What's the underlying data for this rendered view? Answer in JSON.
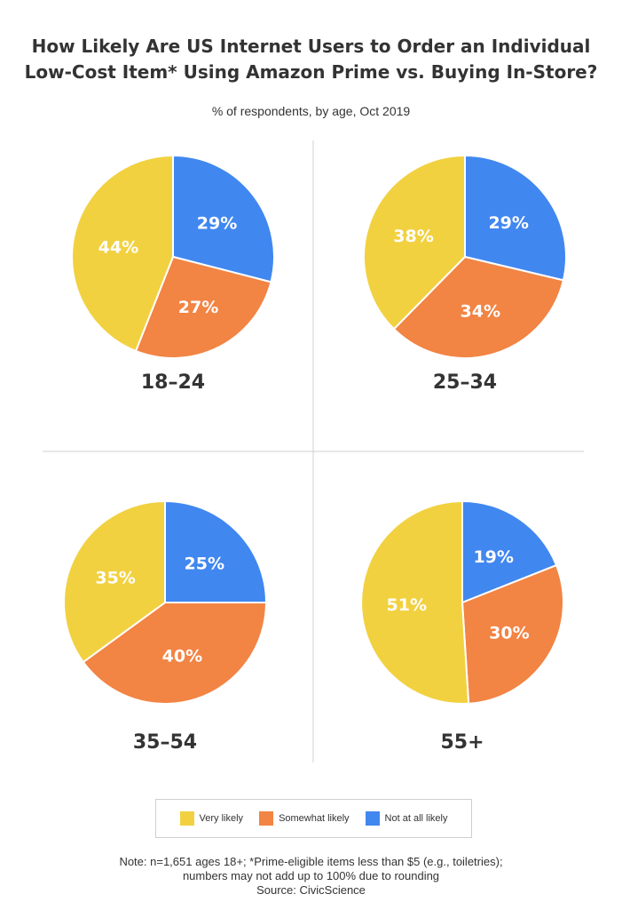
{
  "title_lines": [
    "How Likely Are US Internet Users to Order an Individual",
    "Low-Cost Item* Using Amazon Prime vs. Buying In-Store?"
  ],
  "subtitle": "% of respondents, by age, Oct 2019",
  "legend": [
    {
      "label": "Very likely",
      "color": "#F2D140"
    },
    {
      "label": "Somewhat likely",
      "color": "#F28444"
    },
    {
      "label": "Not at all likely",
      "color": "#4187F0"
    }
  ],
  "note_lines": [
    "Note: n=1,651 ages 18+; *Prime-eligible items less than $5 (e.g., toiletries);",
    "numbers may not add up to 100% due to rounding",
    "Source: CivicScience"
  ],
  "chart_data": [
    {
      "type": "pie",
      "title": "18–24",
      "categories": [
        "Very likely",
        "Somewhat likely",
        "Not at all likely"
      ],
      "values": [
        44,
        27,
        29
      ],
      "labels": [
        "44%",
        "27%",
        "29%"
      ],
      "colors": [
        "#F2D140",
        "#F28444",
        "#4187F0"
      ]
    },
    {
      "type": "pie",
      "title": "25–34",
      "categories": [
        "Very likely",
        "Somewhat likely",
        "Not at all likely"
      ],
      "values": [
        38,
        34,
        29
      ],
      "labels": [
        "38%",
        "34%",
        "29%"
      ],
      "colors": [
        "#F2D140",
        "#F28444",
        "#4187F0"
      ]
    },
    {
      "type": "pie",
      "title": "35–54",
      "categories": [
        "Very likely",
        "Somewhat likely",
        "Not at all likely"
      ],
      "values": [
        35,
        40,
        25
      ],
      "labels": [
        "35%",
        "40%",
        "25%"
      ],
      "colors": [
        "#F2D140",
        "#F28444",
        "#4187F0"
      ]
    },
    {
      "type": "pie",
      "title": "55+",
      "categories": [
        "Very likely",
        "Somewhat likely",
        "Not at all likely"
      ],
      "values": [
        51,
        30,
        19
      ],
      "labels": [
        "51%",
        "30%",
        "19%"
      ],
      "colors": [
        "#F2D140",
        "#F28444",
        "#4187F0"
      ]
    }
  ]
}
